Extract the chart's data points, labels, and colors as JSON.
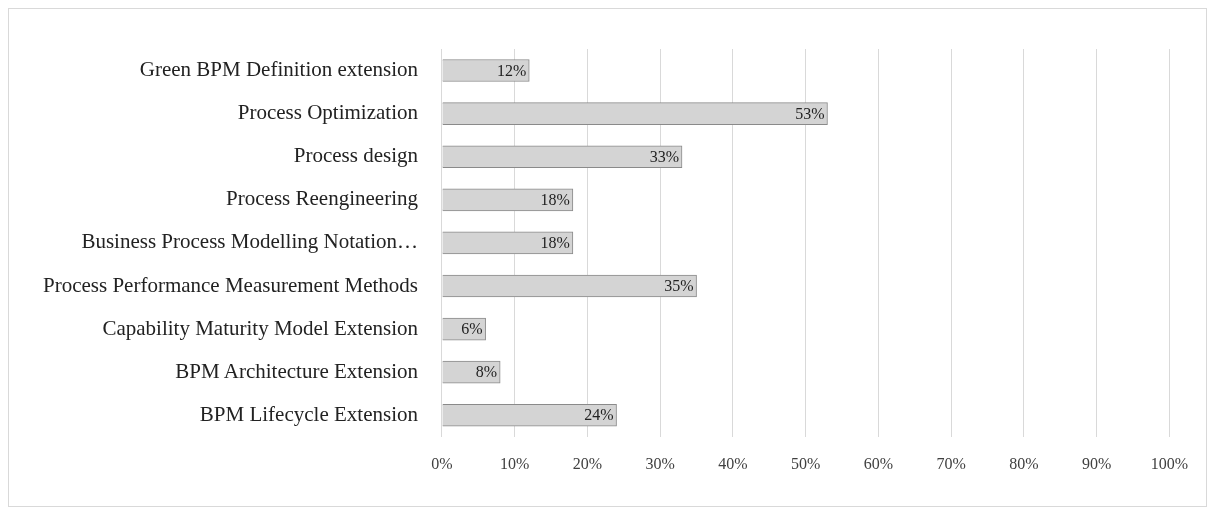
{
  "chart_data": {
    "type": "bar",
    "orientation": "horizontal",
    "categories": [
      "Green BPM Definition extension",
      "Process Optimization",
      "Process design",
      "Process Reengineering",
      "Business Process Modelling Notation…",
      "Process Performance Measurement Methods",
      "Capability Maturity Model Extension",
      "BPM Architecture Extension",
      "BPM Lifecycle Extension"
    ],
    "values": [
      12,
      53,
      33,
      18,
      18,
      35,
      6,
      8,
      24
    ],
    "value_labels": [
      "12%",
      "53%",
      "33%",
      "18%",
      "18%",
      "35%",
      "6%",
      "8%",
      "24%"
    ],
    "color": "#d4d4d4",
    "xlim": [
      0,
      100
    ],
    "xticks": [
      {
        "value": 0,
        "label": "0%"
      },
      {
        "value": 10,
        "label": "10%"
      },
      {
        "value": 20,
        "label": "20%"
      },
      {
        "value": 30,
        "label": "30%"
      },
      {
        "value": 40,
        "label": "40%"
      },
      {
        "value": 50,
        "label": "50%"
      },
      {
        "value": 60,
        "label": "60%"
      },
      {
        "value": 70,
        "label": "70%"
      },
      {
        "value": 80,
        "label": "80%"
      },
      {
        "value": 90,
        "label": "90%"
      },
      {
        "value": 100,
        "label": "100%"
      }
    ],
    "grid": "x"
  }
}
